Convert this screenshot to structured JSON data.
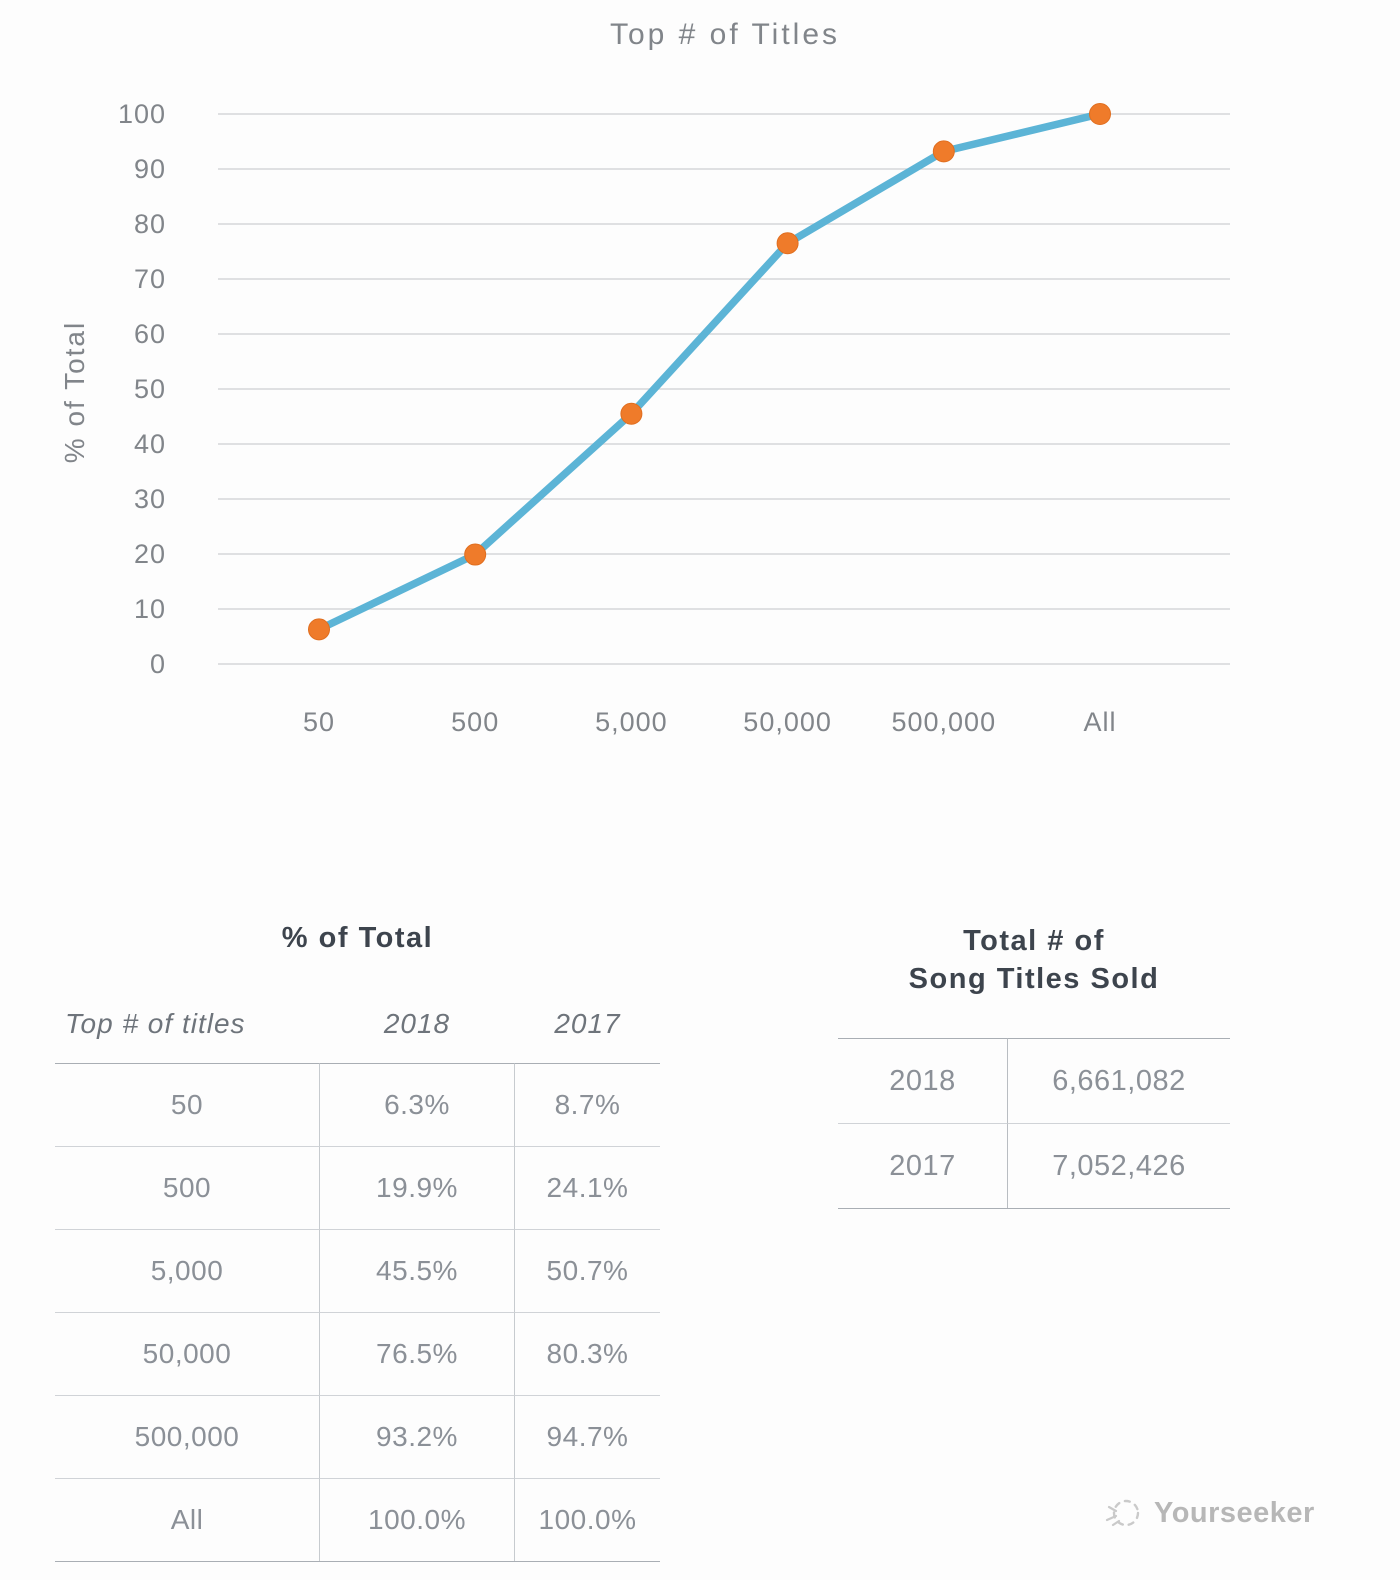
{
  "chart_data": {
    "type": "line",
    "title": "Top # of Titles",
    "xlabel": "",
    "ylabel": "% of Total",
    "categories": [
      "50",
      "500",
      "5,000",
      "50,000",
      "500,000",
      "All"
    ],
    "series": [
      {
        "name": "2018",
        "values": [
          6.3,
          19.9,
          45.5,
          76.5,
          93.2,
          100.0
        ]
      }
    ],
    "ylim": [
      0,
      100
    ],
    "yticks": [
      0,
      10,
      20,
      30,
      40,
      50,
      60,
      70,
      80,
      90,
      100
    ],
    "grid": true,
    "legend": false,
    "line_color": "#5cb4d6",
    "marker_color": "#ef7b2a"
  },
  "colors": {
    "grid": "#d5d7d9",
    "axis_text": "#81858a",
    "heading_text": "#3d444d",
    "table_text": "#8b9097",
    "line": "#5cb4d6",
    "marker": "#ef7b2a"
  },
  "tables": {
    "percent_of_total": {
      "title": "% of Total",
      "columns": [
        "Top # of titles",
        "2018",
        "2017"
      ],
      "rows": [
        [
          "50",
          "6.3%",
          "8.7%"
        ],
        [
          "500",
          "19.9%",
          "24.1%"
        ],
        [
          "5,000",
          "45.5%",
          "50.7%"
        ],
        [
          "50,000",
          "76.5%",
          "80.3%"
        ],
        [
          "500,000",
          "93.2%",
          "94.7%"
        ],
        [
          "All",
          "100.0%",
          "100.0%"
        ]
      ]
    },
    "song_titles_sold": {
      "title_lines": [
        "Total # of",
        "Song Titles Sold"
      ],
      "rows": [
        [
          "2018",
          "6,661,082"
        ],
        [
          "2017",
          "7,052,426"
        ]
      ]
    }
  },
  "watermark": {
    "label": "Yourseeker",
    "icon": "yourseeker-logo-icon"
  }
}
